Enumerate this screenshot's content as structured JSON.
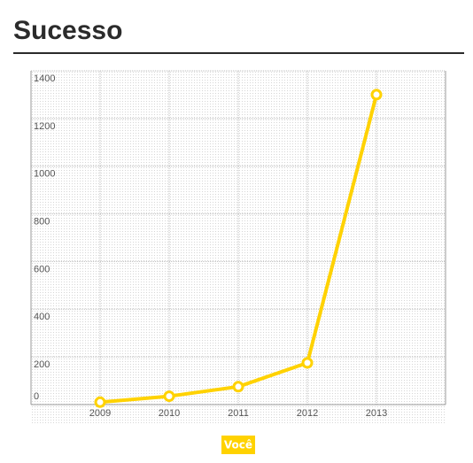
{
  "chart_data": {
    "type": "line",
    "title": "Sucesso",
    "x": [
      2009,
      2010,
      2011,
      2012,
      2013
    ],
    "series": [
      {
        "name": "Você",
        "color": "#ffd200",
        "values": [
          10,
          35,
          75,
          175,
          1300
        ]
      }
    ],
    "xlim": [
      2008,
      2014
    ],
    "xticks": [
      2009,
      2010,
      2011,
      2012,
      2013
    ],
    "ylim": [
      0,
      1400
    ],
    "yticks": [
      0,
      200,
      400,
      600,
      800,
      1000,
      1200,
      1400
    ],
    "grid": true,
    "legend": "bottom"
  }
}
